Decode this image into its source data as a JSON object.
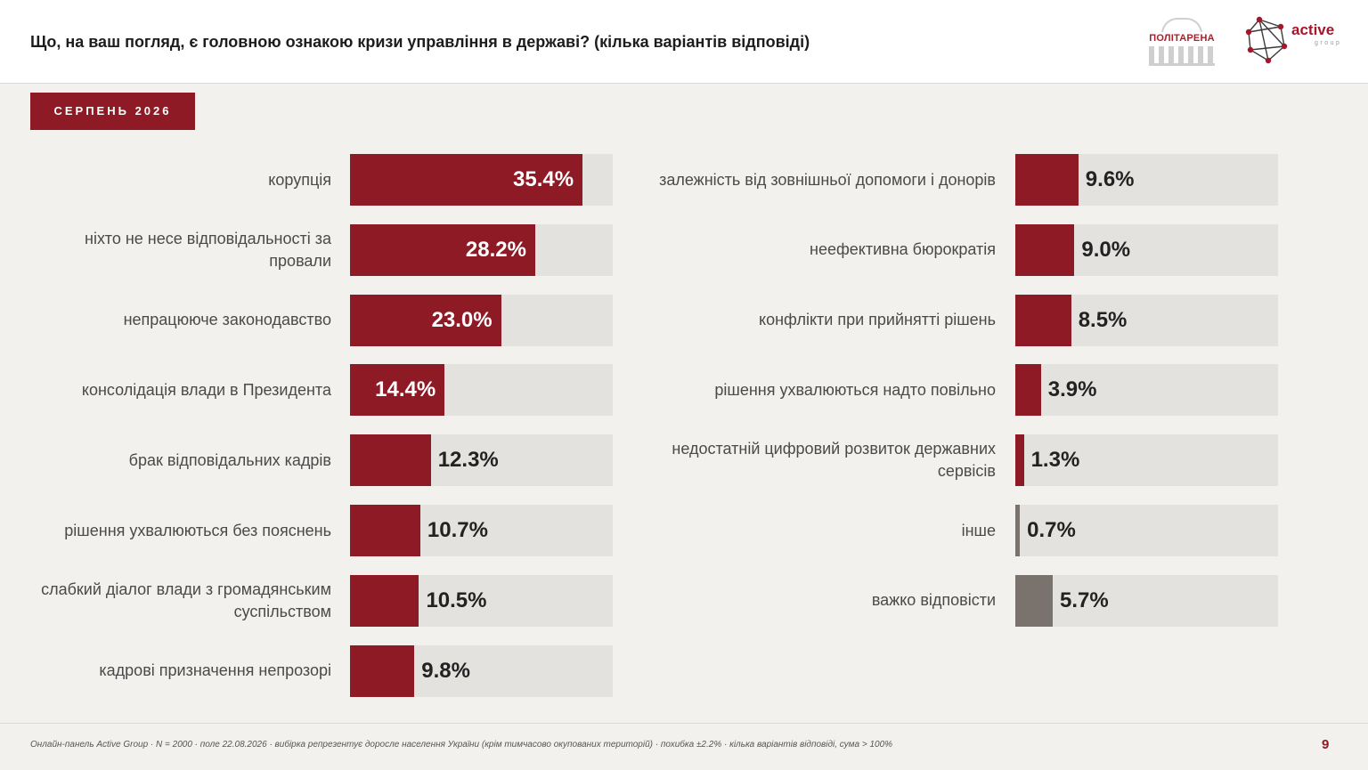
{
  "header": {
    "title": "Що, на ваш погляд, є головною ознакою кризи управління в державі? (кілька варіантів відповіді)",
    "logo_politarena": "ПОЛІТАРЕНА",
    "logo_active_word": "active",
    "logo_active_sub": "group"
  },
  "period_badge": "СЕРПЕНЬ 2026",
  "colors": {
    "accent": "#8e1a26",
    "track": "#e4e2df",
    "neutral": "#7a726d"
  },
  "chart_data": {
    "type": "bar",
    "orientation": "horizontal",
    "unit": "%",
    "xlim": [
      0,
      40
    ],
    "columns": [
      {
        "items": [
          {
            "label": "корупція",
            "value": 35.4,
            "display": "35.4%"
          },
          {
            "label": "ніхто не несе відповідальності за провали",
            "value": 28.2,
            "display": "28.2%"
          },
          {
            "label": "непрацююче законодавство",
            "value": 23.0,
            "display": "23.0%"
          },
          {
            "label": "консолідація влади в Президента",
            "value": 14.4,
            "display": "14.4%"
          },
          {
            "label": "брак відповідальних кадрів",
            "value": 12.3,
            "display": "12.3%"
          },
          {
            "label": "рішення ухвалюються без пояснень",
            "value": 10.7,
            "display": "10.7%"
          },
          {
            "label": "слабкий діалог влади з громадянським суспільством",
            "value": 10.5,
            "display": "10.5%"
          },
          {
            "label": "кадрові призначення непрозорі",
            "value": 9.8,
            "display": "9.8%"
          }
        ]
      },
      {
        "items": [
          {
            "label": "залежність від зовнішньої допомоги і донорів",
            "value": 9.6,
            "display": "9.6%"
          },
          {
            "label": "неефективна бюрократія",
            "value": 9.0,
            "display": "9.0%"
          },
          {
            "label": "конфлікти при прийнятті рішень",
            "value": 8.5,
            "display": "8.5%"
          },
          {
            "label": "рішення ухвалюються надто повільно",
            "value": 3.9,
            "display": "3.9%"
          },
          {
            "label": "недостатній цифровий розвиток державних сервісів",
            "value": 1.3,
            "display": "1.3%"
          },
          {
            "label": "інше",
            "value": 0.7,
            "display": "0.7%",
            "neutral": true
          },
          {
            "label": "важко відповісти",
            "value": 5.7,
            "display": "5.7%",
            "neutral": true
          }
        ]
      }
    ]
  },
  "footer": {
    "note": "Онлайн-панель Active Group · N = 2000 · поле 22.08.2026 · вибірка репрезентує доросле населення України (крім тимчасово окупованих територій) · похибка ±2.2% · кілька варіантів відповіді, сума > 100%",
    "page": "9"
  }
}
